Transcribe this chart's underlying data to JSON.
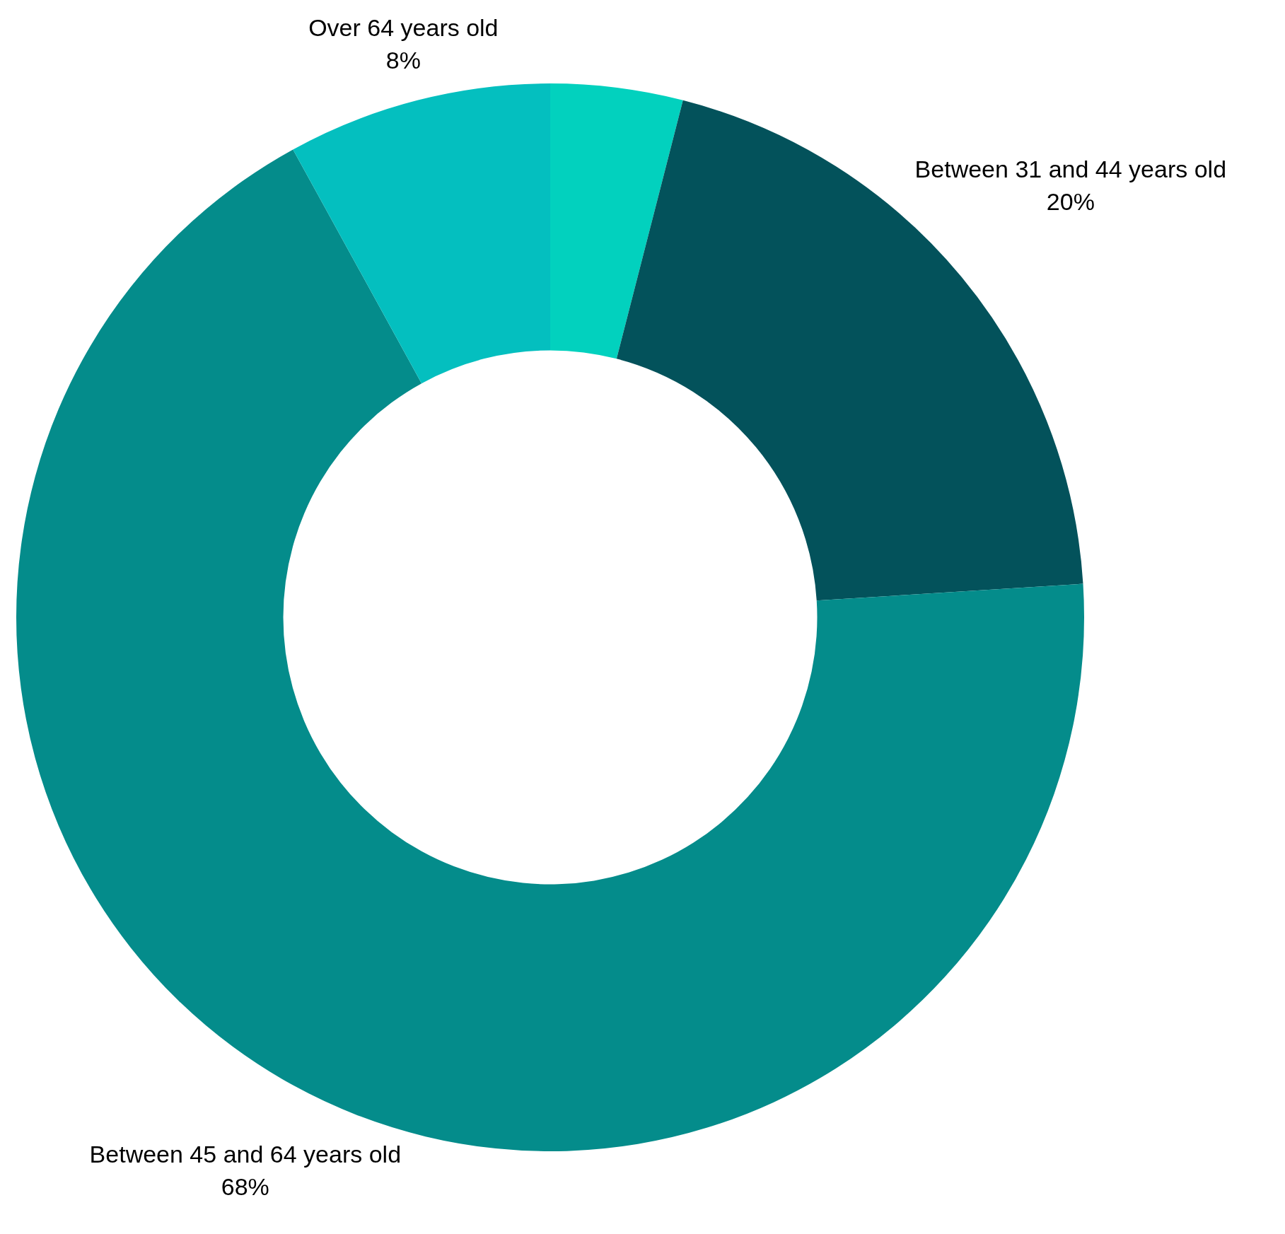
{
  "chart_data": {
    "type": "donut",
    "categories": [
      null,
      "Between 31 and 44 years old",
      "Between 45 and 64 years old",
      "Over 64 years old"
    ],
    "values": [
      4,
      20,
      68,
      8
    ],
    "colors": [
      "#02d1be",
      "#03525b",
      "#048c8b",
      "#04bfbf"
    ],
    "value_labels": [
      null,
      "20%",
      "68%",
      "8%"
    ],
    "legend": false
  }
}
